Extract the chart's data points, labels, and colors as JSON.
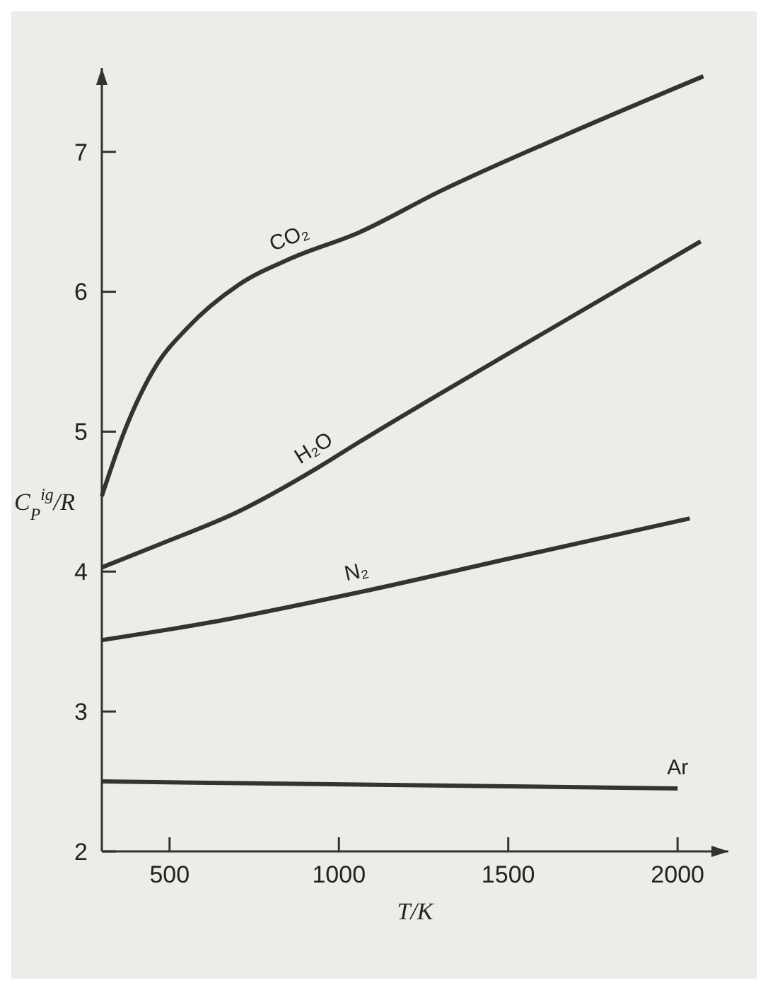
{
  "chart_data": {
    "type": "line",
    "xlabel": "T/K",
    "ylabel": "C$_{P}$$^{ig}$/R",
    "xlim": [
      300,
      2150
    ],
    "ylim": [
      2,
      7.6
    ],
    "xticks": [
      500,
      1000,
      1500,
      2000
    ],
    "yticks": [
      2,
      3,
      4,
      5,
      6,
      7
    ],
    "grid": false,
    "marker": "none",
    "line_style": "solid",
    "series": [
      {
        "name": "CO₂",
        "color": "#333333",
        "x": [
          300,
          368,
          460,
          552,
          704,
          860,
          1056,
          1300,
          1668,
          2076
        ],
        "values": [
          4.54,
          5.01,
          5.47,
          5.74,
          6.05,
          6.24,
          6.42,
          6.72,
          7.12,
          7.54
        ]
      },
      {
        "name": "H₂O",
        "color": "#333333",
        "x": [
          300,
          476,
          704,
          936,
          1056,
          1516,
          2068
        ],
        "values": [
          4.03,
          4.2,
          4.43,
          4.74,
          4.92,
          5.58,
          6.36
        ]
      },
      {
        "name": "N₂",
        "color": "#333333",
        "x": [
          300,
          628,
          1056,
          1516,
          2036
        ],
        "values": [
          3.51,
          3.64,
          3.85,
          4.1,
          4.38
        ]
      },
      {
        "name": "Ar",
        "color": "#333333",
        "x": [
          300,
          2000
        ],
        "values": [
          2.5,
          2.45
        ]
      }
    ]
  }
}
